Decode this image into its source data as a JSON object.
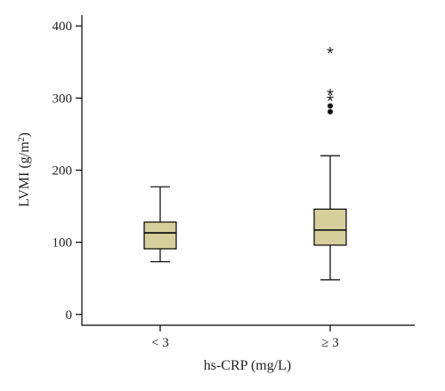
{
  "chart_data": {
    "type": "box",
    "xlabel": "hs-CRP (mg/L)",
    "ylabel": "LVMI (g/m",
    "ylabel_sup": "2",
    "ylabel_suffix": ")",
    "ylim": [
      -15,
      415
    ],
    "yticks": [
      0,
      100,
      200,
      300,
      400
    ],
    "box_color": "#d6cf9c",
    "grid": false,
    "groups": [
      {
        "name": "< 3",
        "min": 73,
        "q1": 91,
        "median": 113,
        "q3": 128,
        "max": 177,
        "outliers": []
      },
      {
        "name": "≥ 3",
        "min": 48,
        "q1": 96,
        "median": 117,
        "q3": 146,
        "max": 220,
        "outliers": [
          {
            "value": 281,
            "marker": "dot"
          },
          {
            "value": 289,
            "marker": "dot"
          },
          {
            "value": 302,
            "marker": "star"
          },
          {
            "value": 310,
            "marker": "star"
          },
          {
            "value": 368,
            "marker": "star"
          }
        ]
      }
    ]
  }
}
